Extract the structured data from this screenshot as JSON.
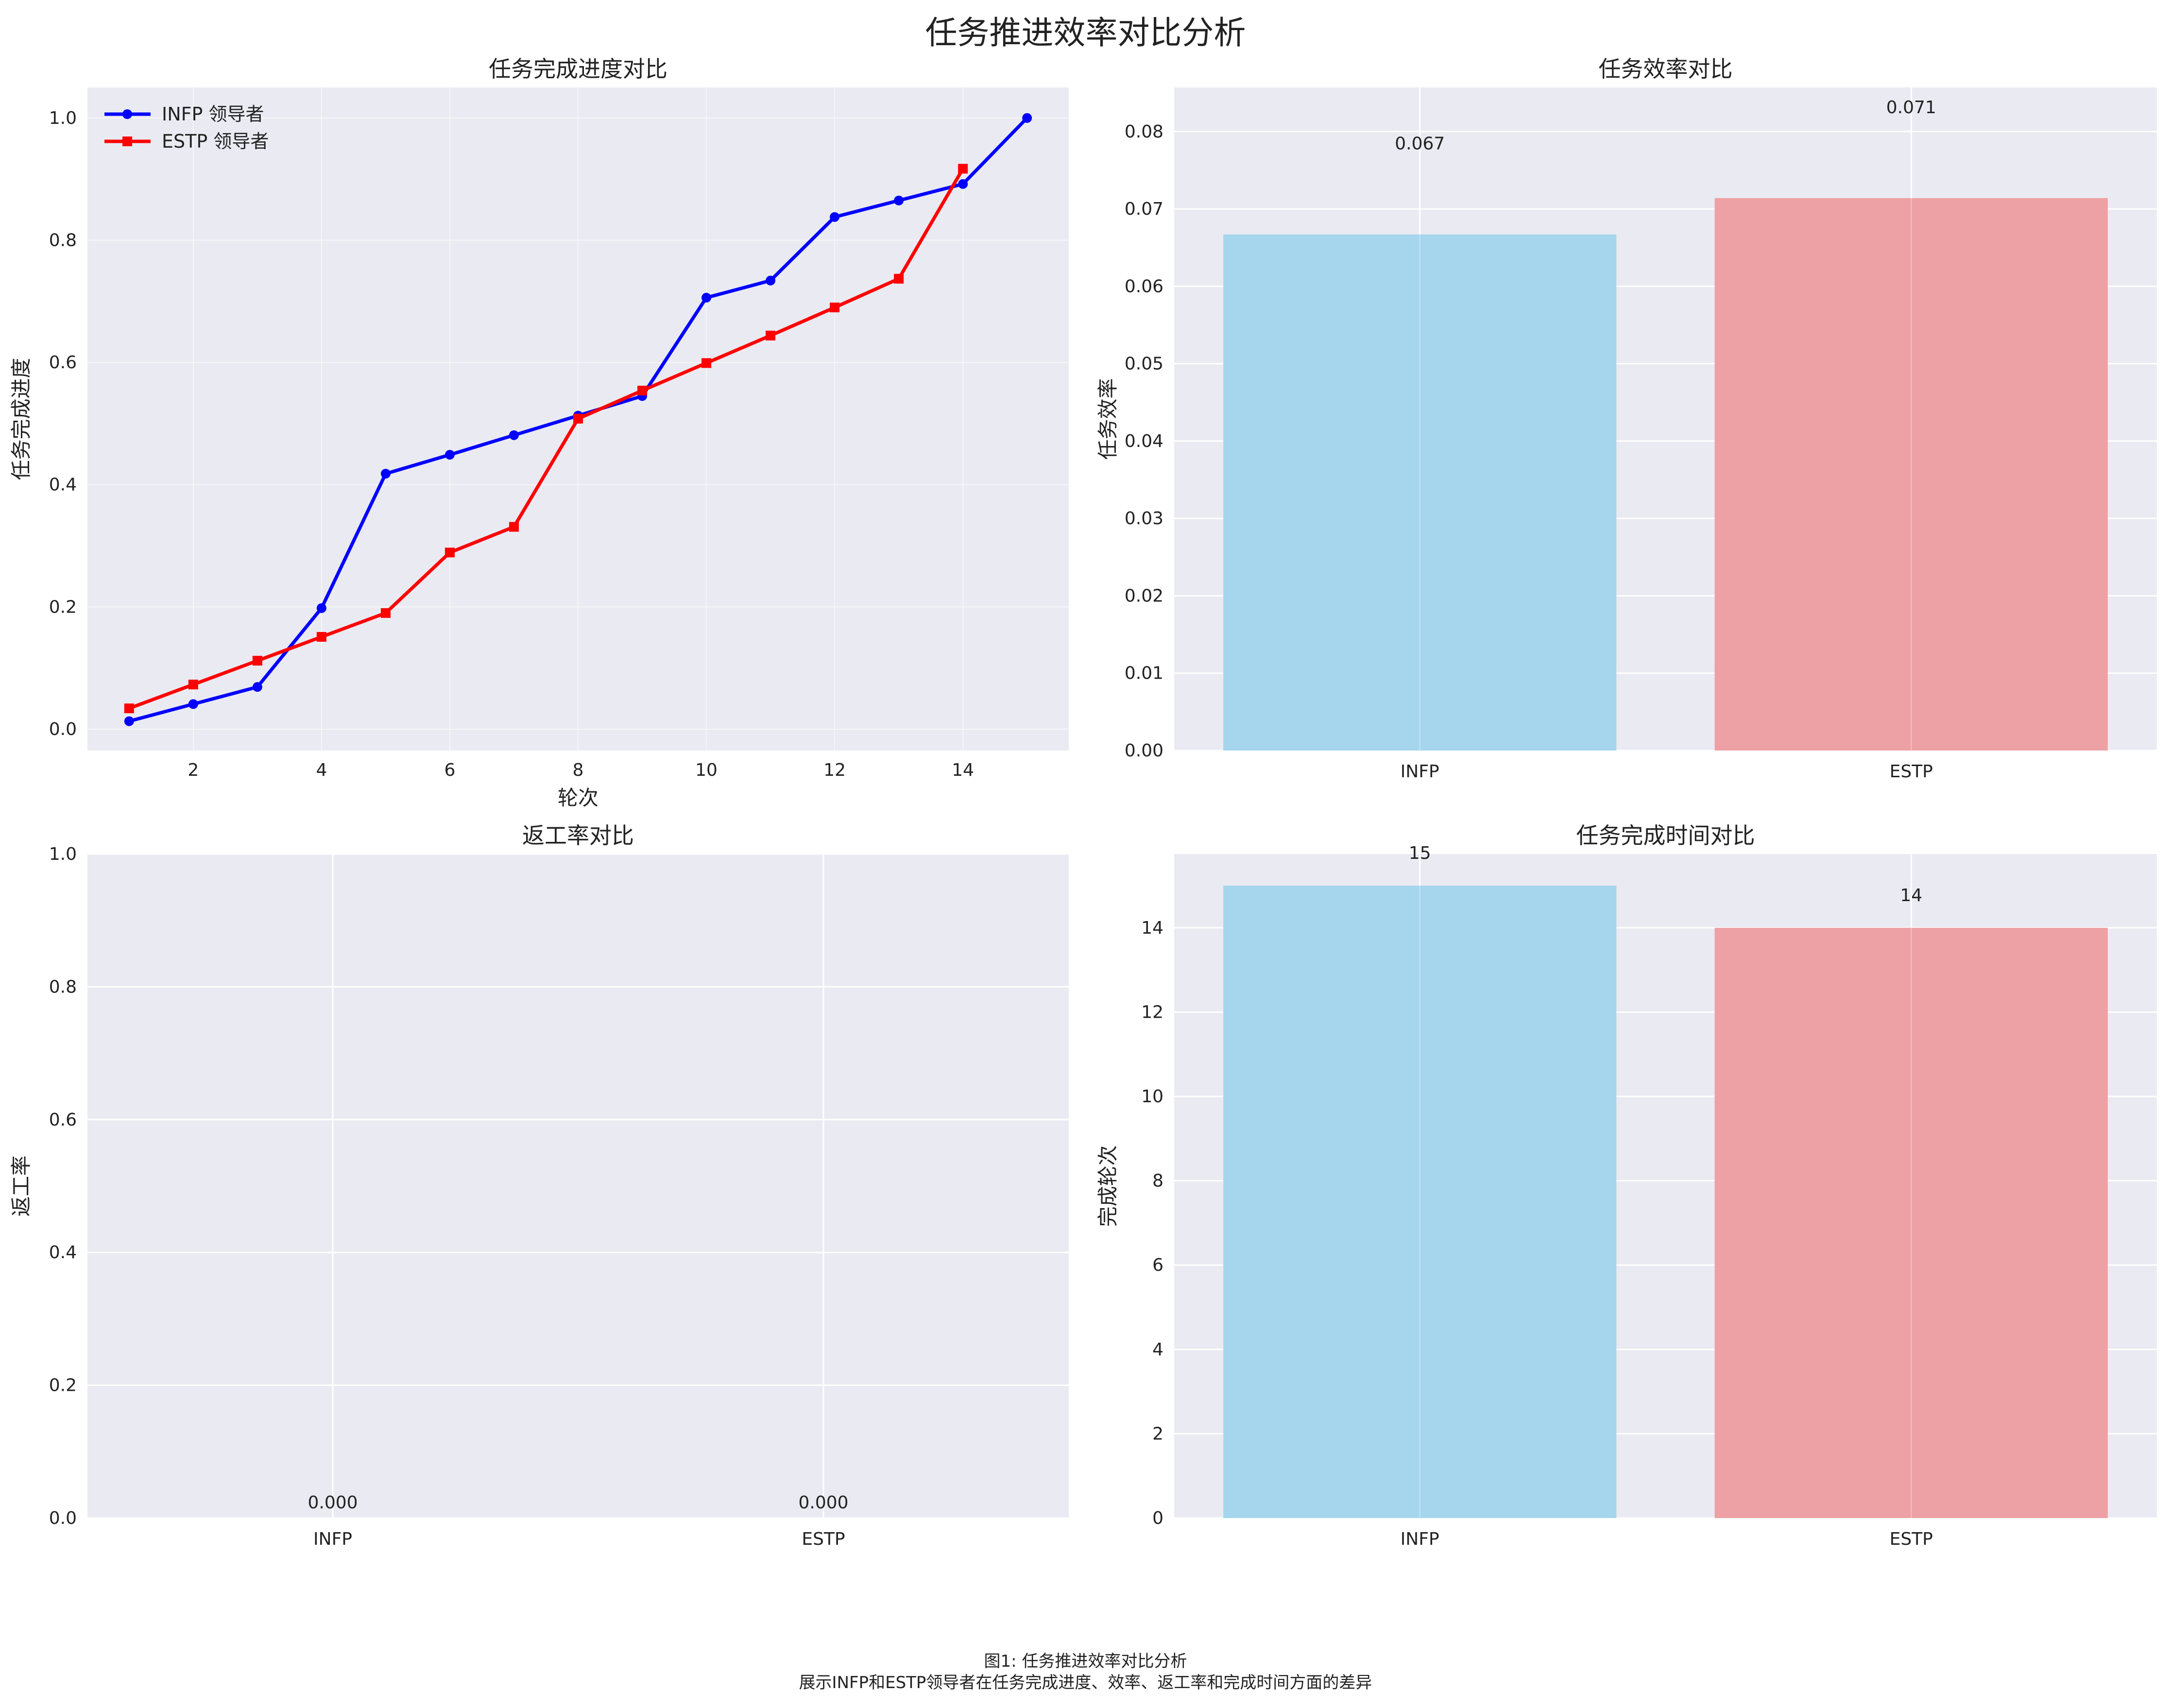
{
  "title": "任务推进效率对比分析",
  "caption": {
    "line1": "图1: 任务推进效率对比分析",
    "line2": "展示INFP和ESTP领导者在任务完成进度、效率、返工率和完成时间方面的差异"
  },
  "colors": {
    "background_panel": "#EAEAF2",
    "grid": "#FFFFFF",
    "infp_line": "#0000FF",
    "estp_line": "#FF0000",
    "infp_bar": "#A5D6ED",
    "estp_bar": "#EDA1A4"
  },
  "chart_data": [
    {
      "type": "line",
      "title": "任务完成进度对比",
      "xlabel": "轮次",
      "ylabel": "任务完成进度",
      "xlim": [
        0.35,
        15.65
      ],
      "ylim": [
        -0.035,
        1.05
      ],
      "xticks": [
        2,
        4,
        6,
        8,
        10,
        12,
        14
      ],
      "yticks": [
        0.0,
        0.2,
        0.4,
        0.6,
        0.8,
        1.0
      ],
      "legend_position": "top-left",
      "series": [
        {
          "name": "INFP 领导者",
          "color": "#0000FF",
          "marker": "circle",
          "x": [
            1,
            2,
            3,
            4,
            5,
            6,
            7,
            8,
            9,
            10,
            11,
            12,
            13,
            14,
            15
          ],
          "y": [
            0.013,
            0.041,
            0.069,
            0.198,
            0.418,
            0.449,
            0.481,
            0.513,
            0.545,
            0.706,
            0.734,
            0.838,
            0.865,
            0.892,
            1.0
          ]
        },
        {
          "name": "ESTP 领导者",
          "color": "#FF0000",
          "marker": "square",
          "x": [
            1,
            2,
            3,
            4,
            5,
            6,
            7,
            8,
            9,
            10,
            11,
            12,
            13,
            14
          ],
          "y": [
            0.034,
            0.073,
            0.112,
            0.151,
            0.19,
            0.289,
            0.331,
            0.508,
            0.554,
            0.599,
            0.644,
            0.69,
            0.737,
            0.917
          ]
        }
      ]
    },
    {
      "type": "bar",
      "title": "任务效率对比",
      "xlabel": "",
      "ylabel": "任务效率",
      "categories": [
        "INFP",
        "ESTP"
      ],
      "values": [
        0.0667,
        0.0714
      ],
      "labels": [
        "0.067",
        "0.071"
      ],
      "ylim": [
        0,
        0.0857
      ],
      "yticks": [
        "0.00",
        "0.01",
        "0.02",
        "0.03",
        "0.04",
        "0.05",
        "0.06",
        "0.07",
        "0.08"
      ],
      "colors": [
        "#A5D6ED",
        "#EDA1A4"
      ]
    },
    {
      "type": "bar",
      "title": "返工率对比",
      "xlabel": "",
      "ylabel": "返工率",
      "categories": [
        "INFP",
        "ESTP"
      ],
      "values": [
        0,
        0
      ],
      "labels": [
        "0.000",
        "0.000"
      ],
      "ylim": [
        0,
        1.0
      ],
      "yticks": [
        "0.0",
        "0.2",
        "0.4",
        "0.6",
        "0.8",
        "1.0"
      ],
      "colors": [
        "#A5D6ED",
        "#EDA1A4"
      ]
    },
    {
      "type": "bar",
      "title": "任务完成时间对比",
      "xlabel": "",
      "ylabel": "完成轮次",
      "categories": [
        "INFP",
        "ESTP"
      ],
      "values": [
        15,
        14
      ],
      "labels": [
        "15",
        "14"
      ],
      "ylim": [
        0,
        15.75
      ],
      "yticks": [
        "0",
        "2",
        "4",
        "6",
        "8",
        "10",
        "12",
        "14"
      ],
      "colors": [
        "#A5D6ED",
        "#EDA1A4"
      ]
    }
  ]
}
